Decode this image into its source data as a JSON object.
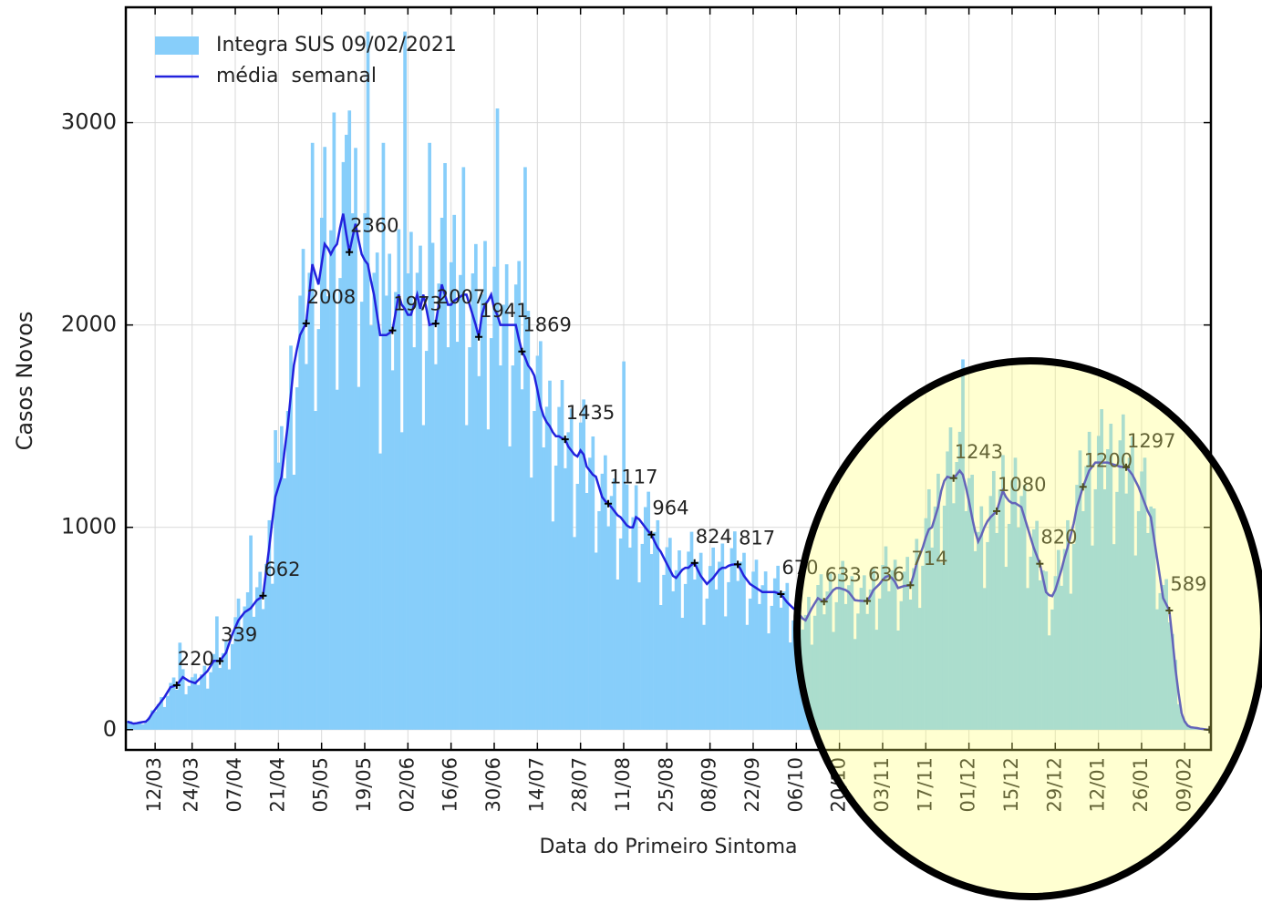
{
  "chart_data": {
    "type": "bar_line",
    "xlabel": "Data do Primeiro Sintoma",
    "ylabel": "Casos Novos",
    "x": [
      "03/03",
      "04/03",
      "05/03",
      "06/03",
      "07/03",
      "08/03",
      "09/03",
      "10/03",
      "11/03",
      "12/03",
      "13/03",
      "14/03",
      "15/03",
      "16/03",
      "17/03",
      "18/03",
      "19/03",
      "20/03",
      "21/03",
      "22/03",
      "23/03",
      "24/03",
      "25/03",
      "26/03",
      "27/03",
      "28/03",
      "29/03",
      "30/03",
      "31/03",
      "01/04",
      "02/04",
      "03/04",
      "04/04",
      "05/04",
      "06/04",
      "07/04",
      "08/04",
      "09/04",
      "10/04",
      "11/04",
      "12/04",
      "13/04",
      "14/04",
      "15/04",
      "16/04",
      "17/04",
      "18/04",
      "19/04",
      "20/04",
      "21/04",
      "22/04",
      "23/04",
      "24/04",
      "25/04",
      "26/04",
      "27/04",
      "28/04",
      "29/04",
      "30/04",
      "01/05",
      "02/05",
      "03/05",
      "04/05",
      "05/05",
      "06/05",
      "07/05",
      "08/05",
      "09/05",
      "10/05",
      "11/05",
      "12/05",
      "13/05",
      "14/05",
      "15/05",
      "16/05",
      "17/05",
      "18/05",
      "19/05",
      "20/05",
      "21/05",
      "22/05",
      "23/05",
      "24/05",
      "25/05",
      "26/05",
      "27/05",
      "28/05",
      "29/05",
      "30/05",
      "31/05",
      "01/06",
      "02/06",
      "03/06",
      "04/06",
      "05/06",
      "06/06",
      "07/06",
      "08/06",
      "09/06",
      "10/06",
      "11/06",
      "12/06",
      "13/06",
      "14/06",
      "15/06",
      "16/06",
      "17/06",
      "18/06",
      "19/06",
      "20/06",
      "21/06",
      "22/06",
      "23/06",
      "24/06",
      "25/06",
      "26/06",
      "27/06",
      "28/06",
      "29/06",
      "30/06",
      "01/07",
      "02/07",
      "03/07",
      "04/07",
      "05/07",
      "06/07",
      "07/07",
      "08/07",
      "09/07",
      "10/07",
      "11/07",
      "12/07",
      "13/07",
      "14/07",
      "15/07",
      "16/07",
      "17/07",
      "18/07",
      "19/07",
      "20/07",
      "21/07",
      "22/07",
      "23/07",
      "24/07",
      "25/07",
      "26/07",
      "27/07",
      "28/07",
      "29/07",
      "30/07",
      "31/07",
      "01/08",
      "02/08",
      "03/08",
      "04/08",
      "05/08",
      "06/08",
      "07/08",
      "08/08",
      "09/08",
      "10/08",
      "11/08",
      "12/08",
      "13/08",
      "14/08",
      "15/08",
      "16/08",
      "17/08",
      "18/08",
      "19/08",
      "20/08",
      "21/08",
      "22/08",
      "23/08",
      "24/08",
      "25/08",
      "26/08",
      "27/08",
      "28/08",
      "29/08",
      "30/08",
      "31/08",
      "01/09",
      "02/09",
      "03/09",
      "04/09",
      "05/09",
      "06/09",
      "07/09",
      "08/09",
      "09/09",
      "10/09",
      "11/09",
      "12/09",
      "13/09",
      "14/09",
      "15/09",
      "16/09",
      "17/09",
      "18/09",
      "19/09",
      "20/09",
      "21/09",
      "22/09",
      "23/09",
      "24/09",
      "25/09",
      "26/09",
      "27/09",
      "28/09",
      "29/09",
      "30/09",
      "01/10",
      "02/10",
      "03/10",
      "04/10",
      "05/10",
      "06/10",
      "07/10",
      "08/10",
      "09/10",
      "10/10",
      "11/10",
      "12/10",
      "13/10",
      "14/10",
      "15/10",
      "16/10",
      "17/10",
      "18/10",
      "19/10",
      "20/10",
      "21/10",
      "22/10",
      "23/10",
      "24/10",
      "25/10",
      "26/10",
      "27/10",
      "28/10",
      "29/10",
      "30/10",
      "31/10",
      "01/11",
      "02/11",
      "03/11",
      "04/11",
      "05/11",
      "06/11",
      "07/11",
      "08/11",
      "09/11",
      "10/11",
      "11/11",
      "12/11",
      "13/11",
      "14/11",
      "15/11",
      "16/11",
      "17/11",
      "18/11",
      "19/11",
      "20/11",
      "21/11",
      "22/11",
      "23/11",
      "24/11",
      "25/11",
      "26/11",
      "27/11",
      "28/11",
      "29/11",
      "30/11",
      "01/12",
      "02/12",
      "03/12",
      "04/12",
      "05/12",
      "06/12",
      "07/12",
      "08/12",
      "09/12",
      "10/12",
      "11/12",
      "12/12",
      "13/12",
      "14/12",
      "15/12",
      "16/12",
      "17/12",
      "18/12",
      "19/12",
      "20/12",
      "21/12",
      "22/12",
      "23/12",
      "24/12",
      "25/12",
      "26/12",
      "27/12",
      "28/12",
      "29/12",
      "30/12",
      "31/12",
      "01/01",
      "02/01",
      "03/01",
      "04/01",
      "05/01",
      "06/01",
      "07/01",
      "08/01",
      "09/01",
      "10/01",
      "11/01",
      "12/01",
      "13/01",
      "14/01",
      "15/01",
      "16/01",
      "17/01",
      "18/01",
      "19/01",
      "20/01",
      "21/01",
      "22/01",
      "23/01",
      "24/01",
      "25/01",
      "26/01",
      "27/01",
      "28/01",
      "29/01",
      "30/01",
      "31/01",
      "01/02",
      "02/02",
      "03/02",
      "04/02",
      "05/02",
      "06/02",
      "07/02",
      "08/02",
      "09/02",
      "10/02",
      "11/02",
      "12/02",
      "13/02",
      "14/02",
      "15/02",
      "16/02",
      "17/02"
    ],
    "xticks": [
      "12/03",
      "24/03",
      "07/04",
      "21/04",
      "05/05",
      "19/05",
      "02/06",
      "16/06",
      "30/06",
      "14/07",
      "28/07",
      "11/08",
      "25/08",
      "08/09",
      "22/09",
      "06/10",
      "20/10",
      "03/11",
      "17/11",
      "01/12",
      "15/12",
      "29/12",
      "12/01",
      "26/01",
      "09/02"
    ],
    "ylim": [
      -100,
      3570
    ],
    "yticks": [
      0,
      1000,
      2000,
      3000
    ],
    "grid": true,
    "legend": "upper left",
    "series": [
      {
        "name": "Integra SUS 09/02/2021",
        "type": "bar",
        "color": "#87cefa",
        "values": [
          44,
          42,
          27,
          34,
          40,
          27,
          36,
          60,
          96,
          90,
          126,
          161,
          112,
          167,
          231,
          258,
          198,
          430,
          299,
          175,
          216,
          259,
          276,
          221,
          273,
          316,
          203,
          284,
          374,
          560,
          305,
          378,
          437,
          298,
          423,
          556,
          648,
          504,
          609,
          679,
          960,
          558,
          704,
          780,
          596,
          819,
          1035,
          721,
          1480,
          1320,
          1500,
          1242,
          1575,
          1898,
          1260,
          1692,
          2145,
          2376,
          1807,
          2258,
          2900,
          1575,
          1980,
          2530,
          2880,
          2142,
          2468,
          3050,
          1680,
          2232,
          2805,
          2940,
          3060,
          2552,
          2875,
          1694,
          2115,
          2552,
          3450,
          1998,
          2258,
          2358,
          1365,
          2900,
          2145,
          2352,
          1776,
          2163,
          2473,
          1470,
          3450,
          2255,
          2460,
          1890,
          2258,
          2392,
          1505,
          1872,
          2900,
          2406,
          1806,
          2205,
          2530,
          2800,
          1890,
          2310,
          2544,
          1917,
          2247,
          2780,
          1505,
          1890,
          2255,
          2400,
          1747,
          2153,
          2415,
          1484,
          1935,
          2288,
          3070,
          1800,
          2100,
          2300,
          1400,
          1800,
          2200,
          2316,
          1682,
          2780,
          2070,
          1246,
          1575,
          1848,
          1920,
          1395,
          1596,
          1725,
          1029,
          1305,
          1595,
          1728,
          1292,
          1470,
          1587,
          952,
          1215,
          1518,
          1632,
          1170,
          1344,
          1449,
          875,
          1080,
          1265,
          1356,
          1005,
          1155,
          1242,
          742,
          945,
          1820,
          1212,
          900,
          1050,
          1208,
          728,
          918,
          1100,
          1176,
          868,
          977,
          1035,
          616,
          765,
          902,
          948,
          684,
          788,
          886,
          553,
          720,
          880,
          978,
          742,
          830,
          874,
          518,
          648,
          809,
          900,
          693,
          830,
          920,
          560,
          729,
          897,
          980,
          735,
          830,
          874,
          518,
          648,
          781,
          840,
          621,
          714,
          782,
          476,
          612,
          748,
          810,
          603,
          683,
          725,
          431,
          540,
          649,
          684,
          495,
          567,
          656,
          420,
          563,
          715,
          768,
          570,
          683,
          771,
          483,
          630,
          770,
          834,
          621,
          714,
          759,
          448,
          574,
          701,
          763,
          572,
          693,
          794,
          494,
          648,
          814,
          906,
          684,
          788,
          840,
          490,
          635,
          781,
          854,
          643,
          798,
          943,
          602,
          810,
          1045,
          1188,
          900,
          1103,
          1265,
          826,
          1107,
          1375,
          1494,
          1119,
          1323,
          1472,
          1830,
          1080,
          1243,
          1260,
          882,
          977,
          1104,
          700,
          927,
          1155,
          1278,
          972,
          1187,
          1357,
          805,
          1017,
          1232,
          1344,
          999,
          1155,
          1208,
          700,
          855,
          990,
          1032,
          738,
          788,
          782,
          466,
          594,
          759,
          888,
          711,
          893,
          1035,
          672,
          918,
          1210,
          1380,
          1080,
          1302,
          1472,
          910,
          1188,
          1452,
          1584,
          1188,
          1386,
          1512,
          917,
          1175,
          1430,
          1558,
          1167,
          1344,
          1449,
          861,
          1080,
          1276,
          1344,
          972,
          1103,
          1093,
          595,
          675,
          715,
          744,
          530,
          473,
          345,
          126,
          72,
          44,
          24,
          11,
          11,
          9,
          4,
          3,
          1,
          0
        ]
      },
      {
        "name": "média  semanal",
        "type": "line",
        "color": "#2222dd",
        "labeled_points": [
          "19/03",
          "02/04",
          "16/04",
          "30/04",
          "14/05",
          "28/05",
          "11/06",
          "25/06",
          "09/07",
          "23/07",
          "06/08",
          "20/08",
          "03/09",
          "17/09",
          "01/10",
          "15/10",
          "29/10",
          "12/11",
          "26/11",
          "10/12",
          "24/12",
          "07/01",
          "21/01",
          "04/02",
          "17/02"
        ],
        "values": [
          40,
          35,
          30,
          32,
          35,
          38,
          40,
          55,
          80,
          100,
          120,
          140,
          160,
          185,
          210,
          215,
          220,
          240,
          260,
          250,
          240,
          235,
          230,
          245,
          260,
          275,
          290,
          315,
          340,
          340,
          339,
          360,
          380,
          425,
          470,
          505,
          540,
          560,
          580,
          590,
          600,
          620,
          640,
          650,
          662,
          780,
          900,
          1030,
          1150,
          1200,
          1250,
          1380,
          1500,
          1650,
          1800,
          1880,
          1950,
          1980,
          2008,
          2150,
          2300,
          2250,
          2200,
          2300,
          2400,
          2380,
          2350,
          2380,
          2400,
          2480,
          2550,
          2450,
          2360,
          2430,
          2500,
          2420,
          2350,
          2320,
          2300,
          2220,
          2150,
          2050,
          1950,
          1950,
          1950,
          1960,
          1973,
          2060,
          2150,
          2100,
          2080,
          2050,
          2050,
          2100,
          2150,
          2080,
          2150,
          2080,
          2000,
          2005,
          2007,
          2100,
          2200,
          2150,
          2100,
          2100,
          2120,
          2130,
          2140,
          2150,
          2150,
          2100,
          2050,
          2000,
          1941,
          2050,
          2100,
          2120,
          2150,
          2080,
          2050,
          2000,
          2000,
          2000,
          2000,
          2000,
          2000,
          1930,
          1869,
          1840,
          1800,
          1780,
          1750,
          1680,
          1600,
          1550,
          1520,
          1500,
          1470,
          1450,
          1450,
          1440,
          1435,
          1400,
          1380,
          1360,
          1350,
          1380,
          1360,
          1300,
          1280,
          1260,
          1250,
          1200,
          1150,
          1130,
          1117,
          1100,
          1080,
          1060,
          1050,
          1030,
          1010,
          1000,
          1000,
          1050,
          1040,
          1020,
          1000,
          980,
          964,
          930,
          900,
          880,
          850,
          820,
          790,
          760,
          750,
          770,
          790,
          800,
          800,
          815,
          824,
          790,
          760,
          740,
          720,
          735,
          750,
          770,
          790,
          800,
          800,
          810,
          815,
          817,
          817,
          790,
          760,
          740,
          720,
          710,
          700,
          690,
          680,
          680,
          680,
          680,
          680,
          675,
          670,
          650,
          630,
          615,
          600,
          590,
          570,
          550,
          540,
          570,
          600,
          625,
          650,
          640,
          633,
          650,
          670,
          690,
          700,
          700,
          695,
          690,
          680,
          660,
          640,
          638,
          637,
          636,
          636,
          660,
          690,
          705,
          720,
          740,
          755,
          760,
          750,
          730,
          700,
          705,
          710,
          712,
          714,
          760,
          820,
          860,
          900,
          950,
          990,
          1000,
          1050,
          1100,
          1180,
          1230,
          1250,
          1245,
          1243,
          1260,
          1280,
          1260,
          1200,
          1130,
          1050,
          980,
          930,
          960,
          1000,
          1030,
          1050,
          1065,
          1080,
          1130,
          1180,
          1150,
          1130,
          1120,
          1120,
          1110,
          1100,
          1050,
          1000,
          950,
          900,
          860,
          820,
          750,
          680,
          665,
          660,
          690,
          740,
          790,
          850,
          900,
          960,
          1020,
          1100,
          1150,
          1200,
          1240,
          1280,
          1300,
          1320,
          1320,
          1320,
          1320,
          1320,
          1315,
          1310,
          1305,
          1300,
          1298,
          1297,
          1280,
          1260,
          1230,
          1200,
          1160,
          1120,
          1080,
          1050,
          950,
          850,
          750,
          650,
          620,
          589,
          450,
          300,
          180,
          80,
          40,
          20,
          12,
          10,
          8,
          5,
          3,
          1,
          0
        ]
      }
    ]
  }
}
